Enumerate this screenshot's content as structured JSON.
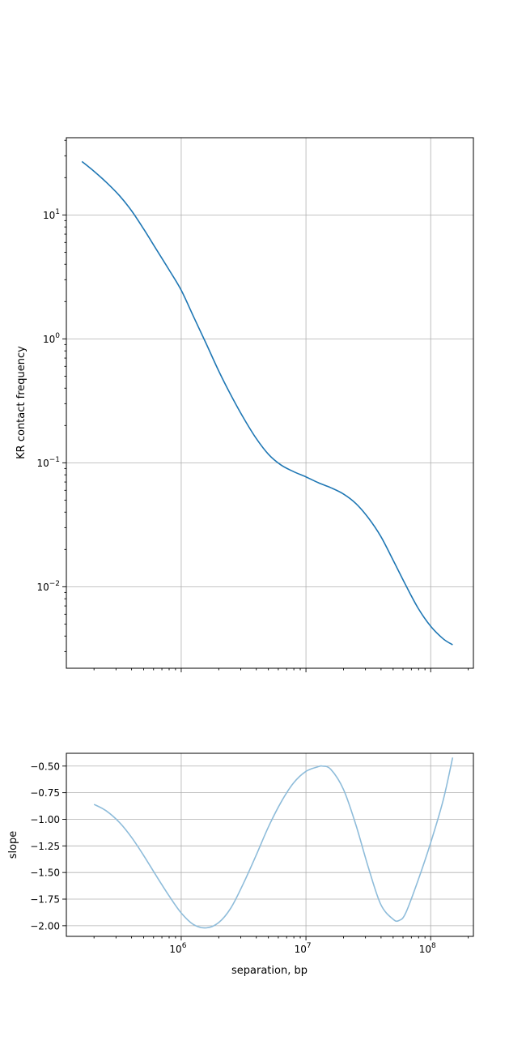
{
  "chart_data": [
    {
      "type": "line",
      "panel": "top",
      "xscale": "log",
      "yscale": "log",
      "xlabel": "",
      "ylabel": "KR contact frequency",
      "xlim": [
        120000,
        220000000
      ],
      "ylim": [
        0.0022,
        42
      ],
      "grid": true,
      "x_ticks": [
        1000000,
        10000000,
        100000000
      ],
      "y_ticks": [
        {
          "value": 0.01,
          "base": "10",
          "exp": "−2"
        },
        {
          "value": 0.1,
          "base": "10",
          "exp": "−1"
        },
        {
          "value": 1,
          "base": "10",
          "exp": "0"
        },
        {
          "value": 10,
          "base": "10",
          "exp": "1"
        }
      ],
      "color": "#1f77b4",
      "series": [
        {
          "x": [
            160000,
            200000,
            250000,
            320000,
            400000,
            500000,
            630000,
            800000,
            1000000,
            1260000,
            1590000,
            2000000,
            2510000,
            3160000,
            3980000,
            5010000,
            6310000,
            7940000,
            10000000,
            12600000,
            15800000,
            20000000,
            25100000,
            31600000,
            39800000,
            50100000,
            63100000,
            79400000,
            100000000,
            126000000,
            150000000
          ],
          "y": [
            27,
            22.5,
            18.4,
            14.3,
            10.8,
            7.7,
            5.3,
            3.6,
            2.47,
            1.5,
            0.91,
            0.55,
            0.35,
            0.23,
            0.158,
            0.117,
            0.096,
            0.085,
            0.077,
            0.069,
            0.063,
            0.056,
            0.047,
            0.036,
            0.0255,
            0.0163,
            0.0103,
            0.0067,
            0.0048,
            0.0038,
            0.0034
          ]
        }
      ]
    },
    {
      "type": "line",
      "panel": "bottom",
      "xscale": "log",
      "yscale": "linear",
      "xlabel": "separation, bp",
      "ylabel": "slope",
      "xlim": [
        120000,
        220000000
      ],
      "ylim": [
        -2.1,
        -0.38
      ],
      "grid": true,
      "x_ticks": [
        {
          "value": 1000000,
          "base": "10",
          "exp": "6"
        },
        {
          "value": 10000000,
          "base": "10",
          "exp": "7"
        },
        {
          "value": 100000000,
          "base": "10",
          "exp": "8"
        }
      ],
      "y_ticks": [
        {
          "value": -0.5,
          "label": "−0.50"
        },
        {
          "value": -0.75,
          "label": "−0.75"
        },
        {
          "value": -1.0,
          "label": "−1.00"
        },
        {
          "value": -1.25,
          "label": "−1.25"
        },
        {
          "value": -1.5,
          "label": "−1.50"
        },
        {
          "value": -1.75,
          "label": "−1.75"
        },
        {
          "value": -2.0,
          "label": "−2.00"
        }
      ],
      "color": "#8ebcda",
      "series": [
        {
          "x": [
            200000,
            250000,
            320000,
            400000,
            500000,
            630000,
            800000,
            1000000,
            1260000,
            1590000,
            2000000,
            2510000,
            3160000,
            3980000,
            5010000,
            6310000,
            7940000,
            10000000,
            12600000,
            13500000,
            15800000,
            20000000,
            25100000,
            31600000,
            39800000,
            50100000,
            56000000,
            63100000,
            79400000,
            100000000,
            126000000,
            150000000
          ],
          "y": [
            -0.86,
            -0.92,
            -1.03,
            -1.17,
            -1.34,
            -1.53,
            -1.72,
            -1.88,
            -1.99,
            -2.02,
            -1.97,
            -1.83,
            -1.6,
            -1.34,
            -1.07,
            -0.84,
            -0.66,
            -0.55,
            -0.505,
            -0.5,
            -0.53,
            -0.72,
            -1.05,
            -1.45,
            -1.8,
            -1.94,
            -1.95,
            -1.88,
            -1.57,
            -1.22,
            -0.82,
            -0.42
          ]
        }
      ]
    }
  ]
}
